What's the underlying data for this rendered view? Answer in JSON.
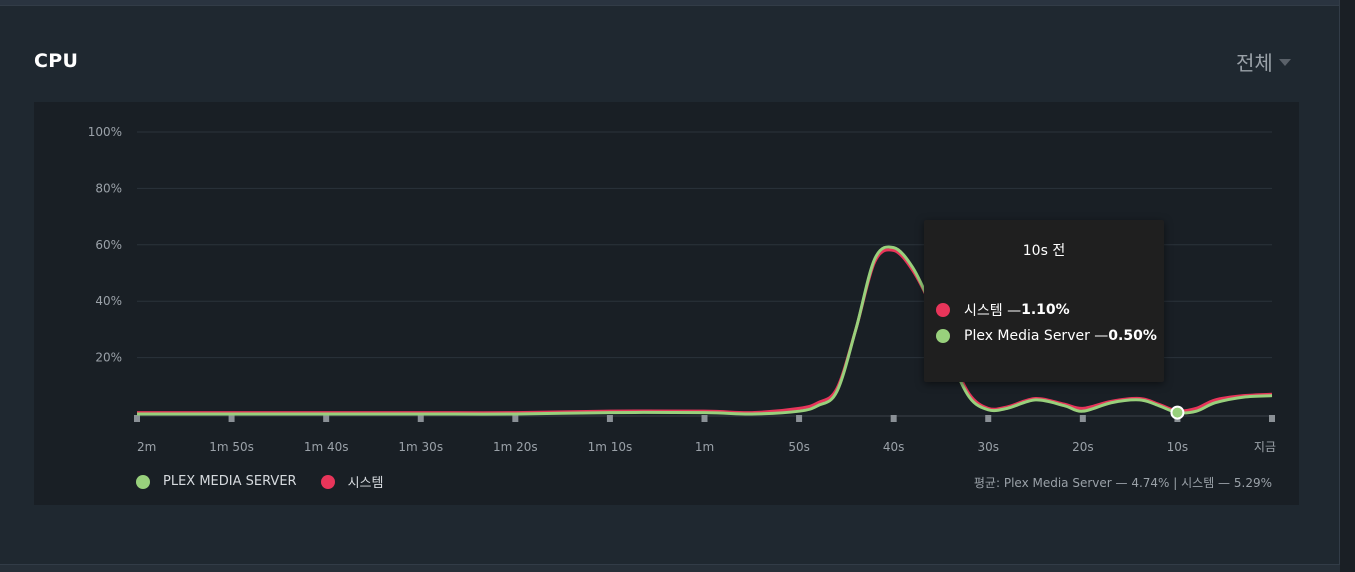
{
  "panel": {
    "title": "CPU",
    "range_label": "전체"
  },
  "colors": {
    "system": "#e8355a",
    "plex": "#98d07c"
  },
  "legend": {
    "plex_label": "PLEX MEDIA SERVER",
    "system_label": "시스템"
  },
  "averages_text": "평균: Plex Media Server — 4.74% | 시스템 — 5.29%",
  "tooltip": {
    "title": "10s 전",
    "system_row": "시스템 — ",
    "system_value": "1.10%",
    "plex_row": "Plex Media Server — ",
    "plex_value": "0.50%"
  },
  "chart_data": {
    "type": "line",
    "ylim": [
      0,
      100
    ],
    "yticks": [
      "100%",
      "80%",
      "60%",
      "40%",
      "20%"
    ],
    "ytick_values": [
      100,
      80,
      60,
      40,
      20
    ],
    "x_labels": [
      "2m",
      "1m 50s",
      "1m 40s",
      "1m 30s",
      "1m 20s",
      "1m 10s",
      "1m",
      "50s",
      "40s",
      "30s",
      "20s",
      "10s",
      "지금"
    ],
    "x": [
      120,
      110,
      100,
      90,
      80,
      70,
      60,
      55,
      50,
      48,
      46,
      44,
      42,
      40,
      38,
      36,
      34,
      32,
      30,
      28,
      25,
      22,
      20,
      17,
      14,
      12,
      10,
      8,
      6,
      3,
      0
    ],
    "series": [
      {
        "name": "Plex Media Server",
        "values": [
          0,
          0,
          0,
          0,
          0,
          0.5,
          0.5,
          0,
          1,
          3,
          8,
          30,
          55,
          59,
          52,
          38,
          20,
          6,
          1.5,
          2,
          5,
          3,
          1,
          4,
          5,
          3,
          0.5,
          1,
          4,
          6,
          6.5
        ]
      },
      {
        "name": "시스템",
        "values": [
          0.5,
          0.5,
          0.5,
          0.5,
          0.5,
          1,
          1,
          0.5,
          2,
          4,
          9,
          30,
          54,
          58,
          51,
          38,
          21,
          7,
          2,
          2.5,
          5.5,
          3.5,
          2,
          4.5,
          5.5,
          3.5,
          1.1,
          2,
          5,
          6.5,
          7
        ]
      }
    ],
    "grid": true,
    "legend_position": "bottom-left"
  }
}
